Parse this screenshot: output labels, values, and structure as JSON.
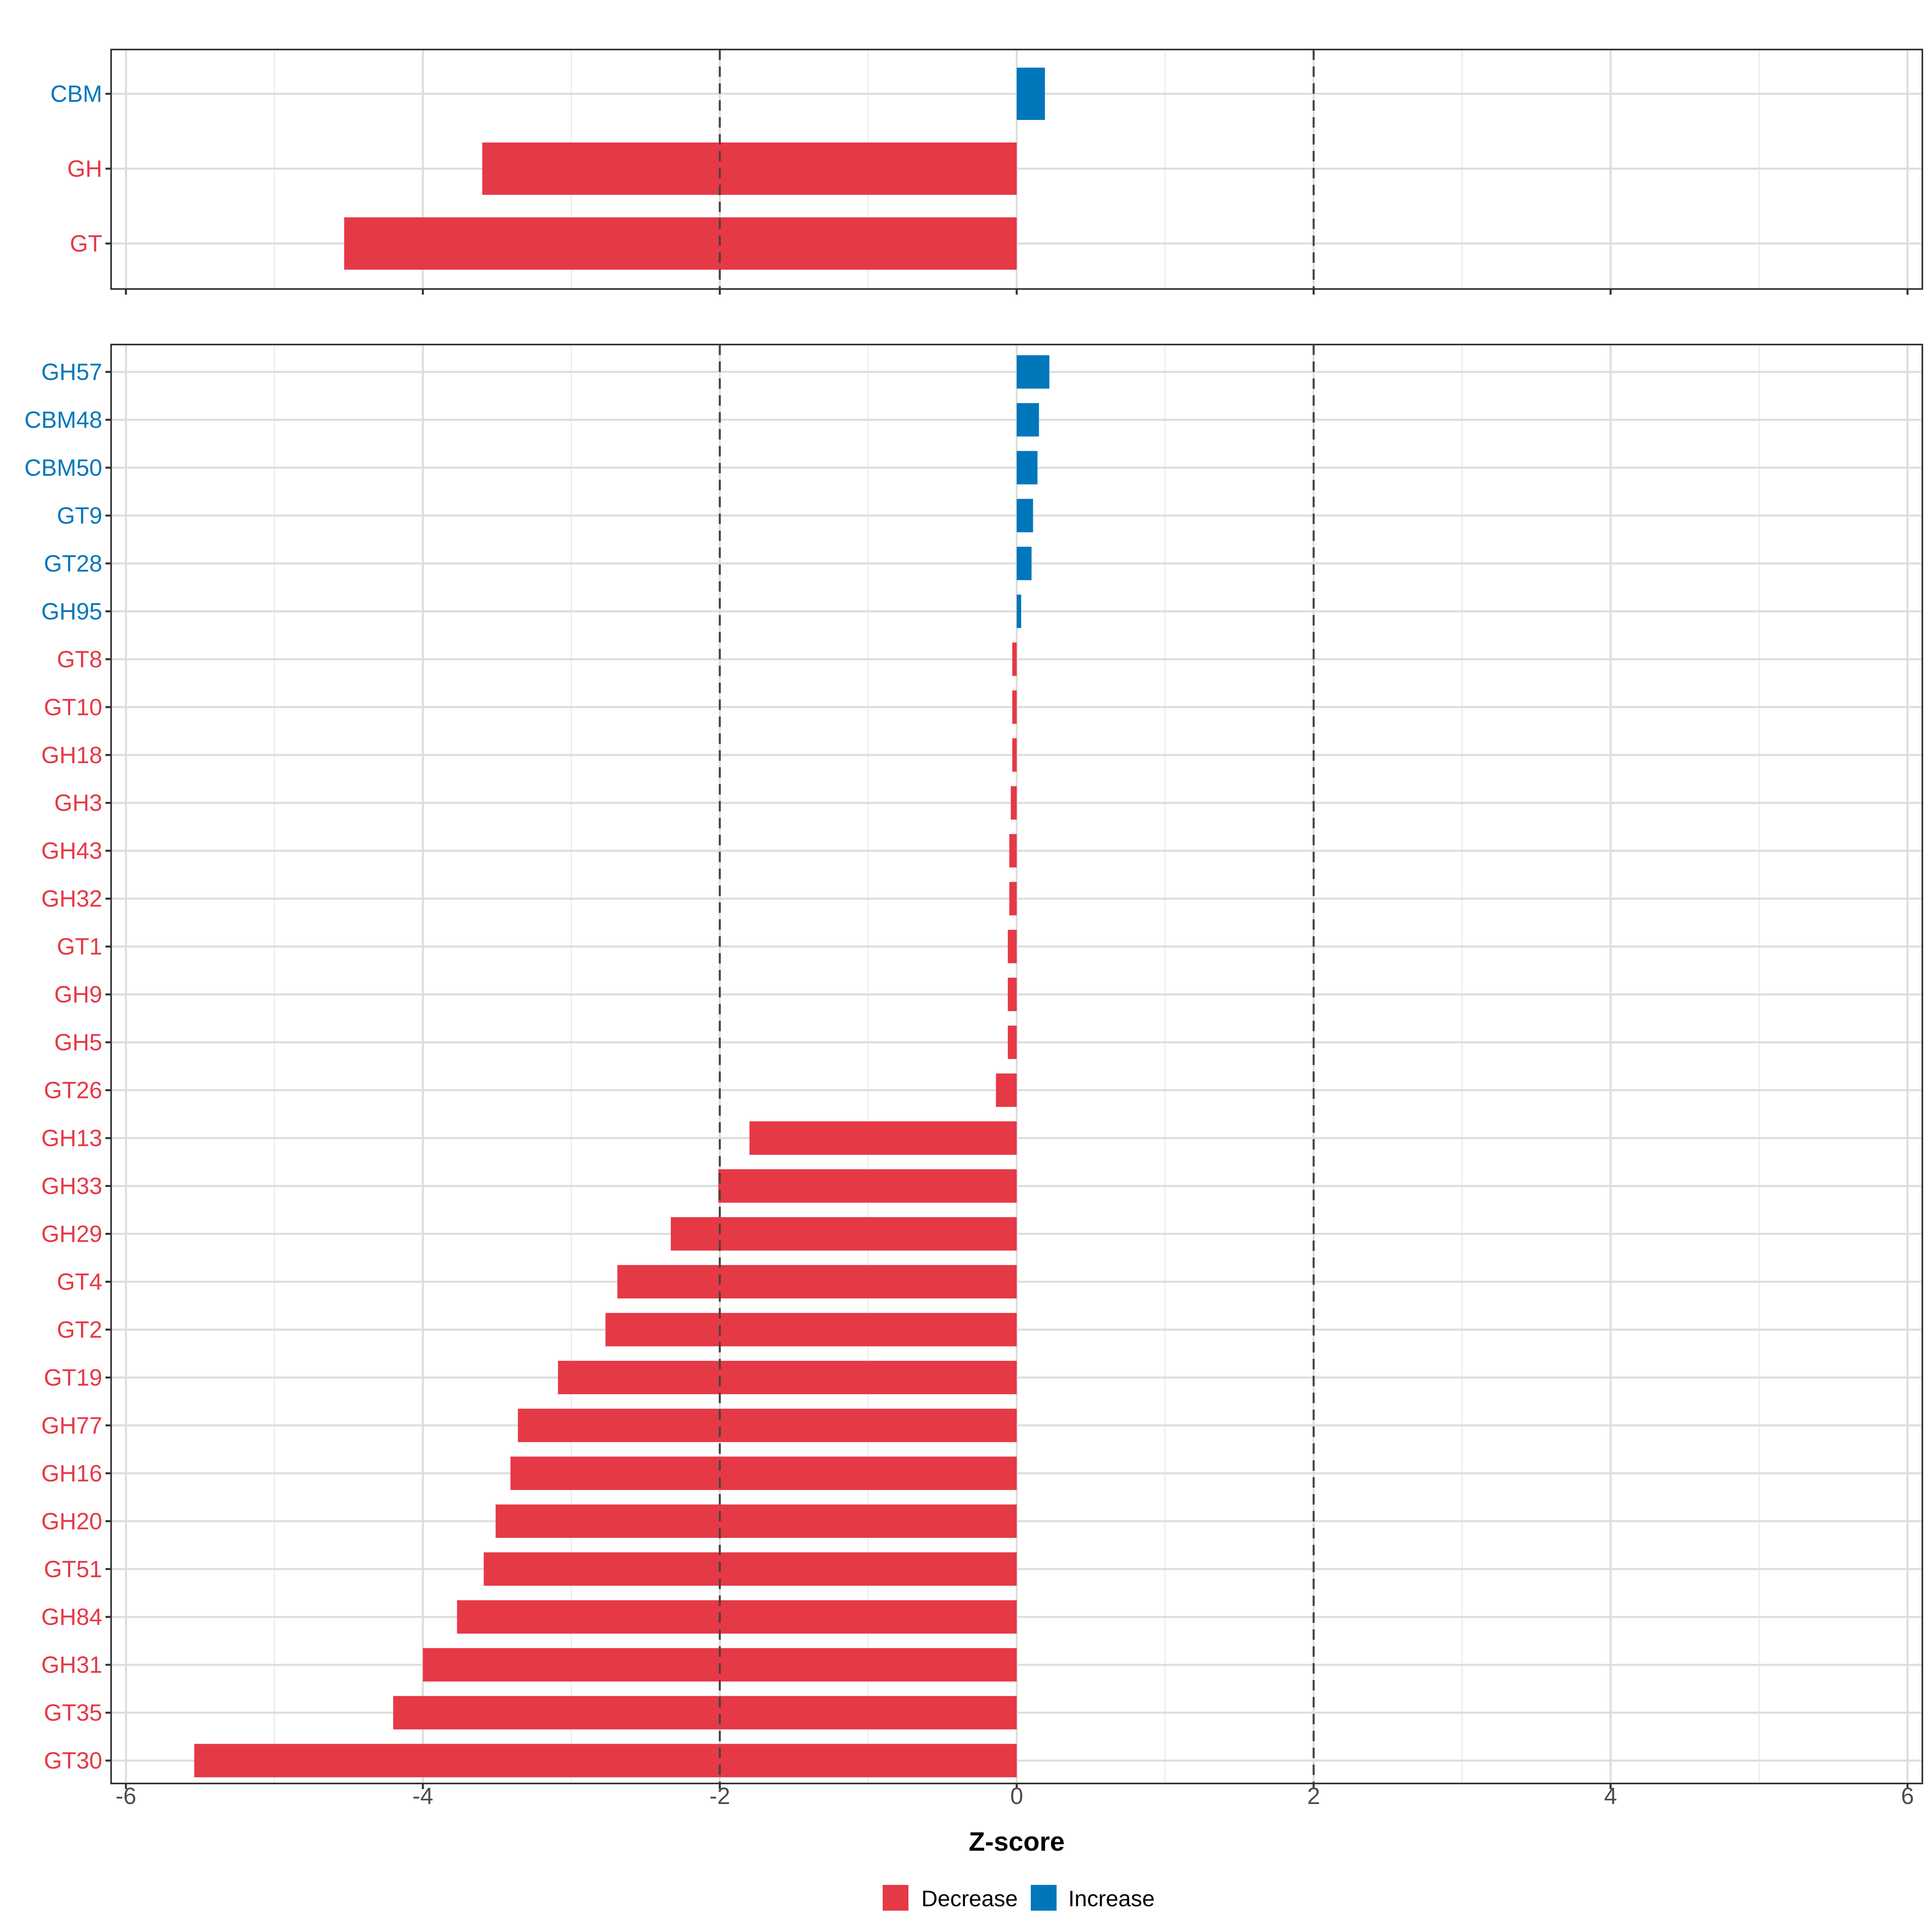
{
  "chart_data": {
    "type": "bar",
    "orientation": "horizontal",
    "xlabel": "Z-score",
    "xlim": [
      -6.1,
      6.1
    ],
    "x_ticks": [
      -6,
      -4,
      -2,
      0,
      2,
      4,
      6
    ],
    "x_tick_labels": [
      "-6",
      "-4",
      "-2",
      "0",
      "2",
      "4",
      "6"
    ],
    "reference_lines": [
      -2,
      2
    ],
    "grid": true,
    "colors": {
      "Decrease": "#E63946",
      "Increase": "#0077BB"
    },
    "legend": {
      "position": "bottom",
      "items": [
        "Decrease",
        "Increase"
      ]
    },
    "panels": [
      {
        "categories": [
          "CBM",
          "GH",
          "GT"
        ],
        "values": [
          0.19,
          -3.6,
          -4.53
        ],
        "direction": [
          "Increase",
          "Decrease",
          "Decrease"
        ]
      },
      {
        "categories": [
          "GH57",
          "CBM48",
          "CBM50",
          "GT9",
          "GT28",
          "GH95",
          "GT8",
          "GT10",
          "GH18",
          "GH3",
          "GH43",
          "GH32",
          "GT1",
          "GH9",
          "GH5",
          "GT26",
          "GH13",
          "GH33",
          "GH29",
          "GT4",
          "GT2",
          "GT19",
          "GH77",
          "GH16",
          "GH20",
          "GT51",
          "GH84",
          "GH31",
          "GT35",
          "GT30"
        ],
        "values": [
          0.22,
          0.15,
          0.14,
          0.11,
          0.1,
          0.03,
          -0.03,
          -0.03,
          -0.03,
          -0.04,
          -0.05,
          -0.05,
          -0.06,
          -0.06,
          -0.06,
          -0.14,
          -1.8,
          -2.01,
          -2.33,
          -2.69,
          -2.77,
          -3.09,
          -3.36,
          -3.41,
          -3.51,
          -3.59,
          -3.77,
          -4.0,
          -4.2,
          -5.54
        ],
        "direction": [
          "Increase",
          "Increase",
          "Increase",
          "Increase",
          "Increase",
          "Increase",
          "Decrease",
          "Decrease",
          "Decrease",
          "Decrease",
          "Decrease",
          "Decrease",
          "Decrease",
          "Decrease",
          "Decrease",
          "Decrease",
          "Decrease",
          "Decrease",
          "Decrease",
          "Decrease",
          "Decrease",
          "Decrease",
          "Decrease",
          "Decrease",
          "Decrease",
          "Decrease",
          "Decrease",
          "Decrease",
          "Decrease",
          "Decrease"
        ]
      }
    ]
  }
}
